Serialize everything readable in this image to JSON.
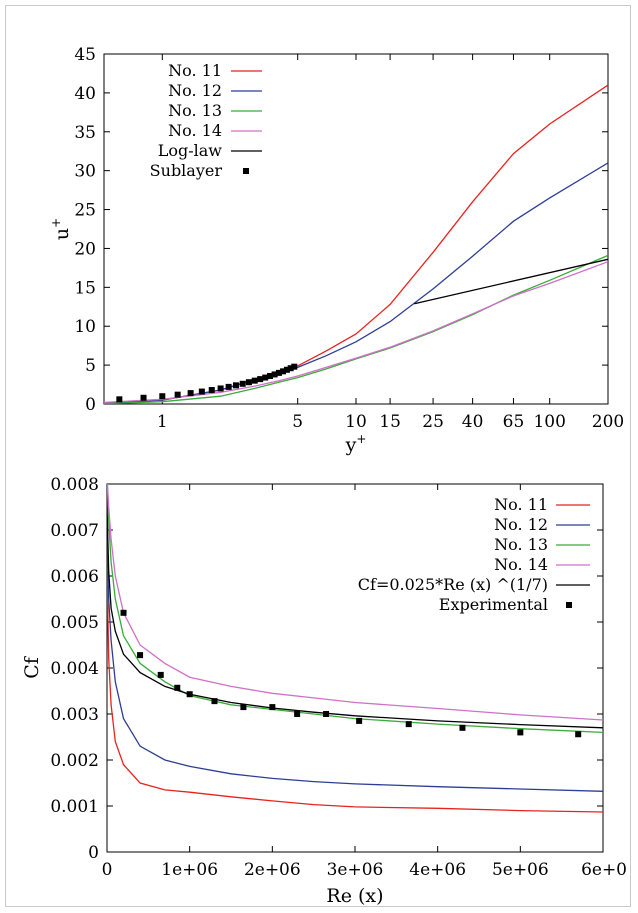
{
  "chart_data": [
    {
      "type": "line",
      "title": "",
      "xlabel": "y",
      "xlabel_sup": "+",
      "ylabel": "u",
      "ylabel_sup": "+",
      "xscale": "log",
      "xlim": [
        0.5,
        200
      ],
      "ylim": [
        0,
        45
      ],
      "x_ticks": [
        1,
        5,
        10,
        15,
        25,
        40,
        65,
        100,
        200
      ],
      "y_ticks": [
        0,
        5,
        10,
        15,
        20,
        25,
        30,
        35,
        40,
        45
      ],
      "legend": "top-left",
      "grid": false,
      "series": [
        {
          "name": "No. 11",
          "color": "#e8231e",
          "x": [
            0.5,
            1,
            2,
            3,
            4,
            5,
            7,
            10,
            15,
            25,
            40,
            65,
            100,
            200
          ],
          "y": [
            0.1,
            0.5,
            1.8,
            3.2,
            4.1,
            4.9,
            6.8,
            9.0,
            12.8,
            19.5,
            26.0,
            32.2,
            36.0,
            41.0
          ]
        },
        {
          "name": "No. 12",
          "color": "#2c3e94",
          "x": [
            0.5,
            1,
            2,
            3,
            4,
            5,
            7,
            10,
            15,
            25,
            40,
            65,
            100,
            200
          ],
          "y": [
            0.1,
            0.5,
            1.8,
            3.1,
            3.9,
            4.7,
            6.2,
            8.0,
            10.6,
            14.8,
            19.0,
            23.5,
            26.5,
            31.0
          ]
        },
        {
          "name": "No. 13",
          "color": "#3aab3a",
          "x": [
            0.5,
            1,
            2,
            3,
            4,
            5,
            7,
            10,
            15,
            25,
            40,
            65,
            100,
            200
          ],
          "y": [
            0.05,
            0.3,
            1.0,
            2.0,
            2.8,
            3.4,
            4.5,
            5.8,
            7.2,
            9.3,
            11.5,
            14.0,
            15.9,
            19.1
          ]
        },
        {
          "name": "No. 14",
          "color": "#d070c8",
          "x": [
            0.5,
            1,
            2,
            3,
            4,
            5,
            7,
            10,
            15,
            25,
            40,
            65,
            100,
            200
          ],
          "y": [
            0.2,
            0.6,
            1.5,
            2.3,
            3.0,
            3.6,
            4.7,
            5.9,
            7.3,
            9.4,
            11.6,
            13.9,
            15.5,
            18.3
          ]
        },
        {
          "name": "Log-law",
          "color": "#000000",
          "x": [
            20,
            200
          ],
          "y": [
            12.9,
            18.6
          ]
        },
        {
          "name": "Sublayer",
          "color": "#000000",
          "marker": "square",
          "x": [
            0.6,
            0.8,
            1.0,
            1.2,
            1.4,
            1.6,
            1.8,
            2.0,
            2.2,
            2.4,
            2.6,
            2.8,
            3.0,
            3.2,
            3.4,
            3.6,
            3.8,
            4.0,
            4.2,
            4.4,
            4.6,
            4.8
          ],
          "y": [
            0.6,
            0.8,
            1.0,
            1.2,
            1.4,
            1.6,
            1.8,
            2.0,
            2.2,
            2.4,
            2.6,
            2.8,
            3.0,
            3.2,
            3.4,
            3.6,
            3.8,
            4.0,
            4.2,
            4.4,
            4.6,
            4.8
          ]
        }
      ]
    },
    {
      "type": "line",
      "title": "",
      "xlabel": "Re (x)",
      "ylabel": "Cf",
      "xlim": [
        0,
        6000000
      ],
      "ylim": [
        0,
        0.008
      ],
      "x_tick_labels": [
        "0",
        "1e+06",
        "2e+06",
        "3e+06",
        "4e+06",
        "5e+06",
        "6e+0"
      ],
      "y_tick_labels": [
        "0",
        "0.001",
        "0.002",
        "0.003",
        "0.004",
        "0.005",
        "0.006",
        "0.007",
        "0.008"
      ],
      "legend": "top-right",
      "grid": false,
      "series": [
        {
          "name": "No. 11",
          "color": "#e8231e",
          "x": [
            0,
            20000,
            50000,
            100000,
            200000,
            400000,
            700000,
            1000000,
            1500000,
            2000000,
            2500000,
            3000000,
            4000000,
            5000000,
            6000000
          ],
          "y": [
            0.0062,
            0.0042,
            0.0032,
            0.0024,
            0.0019,
            0.0015,
            0.00135,
            0.0013,
            0.0012,
            0.00111,
            0.00103,
            0.00098,
            0.00095,
            0.0009,
            0.00087
          ]
        },
        {
          "name": "No. 12",
          "color": "#2c3e94",
          "x": [
            0,
            20000,
            50000,
            100000,
            200000,
            400000,
            700000,
            1000000,
            1500000,
            2000000,
            2500000,
            3000000,
            4000000,
            5000000,
            6000000
          ],
          "y": [
            0.0068,
            0.0055,
            0.0046,
            0.0037,
            0.0029,
            0.0023,
            0.002,
            0.00186,
            0.0017,
            0.0016,
            0.00153,
            0.00148,
            0.00142,
            0.00137,
            0.00132
          ]
        },
        {
          "name": "No. 13",
          "color": "#3aab3a",
          "x": [
            0,
            20000,
            50000,
            100000,
            200000,
            400000,
            700000,
            1000000,
            1500000,
            2000000,
            2500000,
            3000000,
            4000000,
            5000000,
            6000000
          ],
          "y": [
            0.0082,
            0.0072,
            0.0063,
            0.0055,
            0.0047,
            0.0041,
            0.0037,
            0.0034,
            0.0032,
            0.0031,
            0.003,
            0.0029,
            0.00278,
            0.00268,
            0.0026
          ]
        },
        {
          "name": "No. 14",
          "color": "#d070c8",
          "x": [
            0,
            20000,
            50000,
            100000,
            200000,
            400000,
            700000,
            1000000,
            1500000,
            2000000,
            2500000,
            3000000,
            4000000,
            5000000,
            6000000
          ],
          "y": [
            0.0082,
            0.0075,
            0.0068,
            0.006,
            0.0052,
            0.0045,
            0.0041,
            0.0038,
            0.0036,
            0.00345,
            0.00335,
            0.00325,
            0.00312,
            0.00298,
            0.00287
          ]
        },
        {
          "name": "Cf=0.025*Re (x) ^(1/7)",
          "color": "#000000",
          "x": [
            0,
            20000,
            50000,
            100000,
            200000,
            400000,
            700000,
            1000000,
            1500000,
            2000000,
            2500000,
            3000000,
            4000000,
            5000000,
            6000000
          ],
          "y": [
            0.0075,
            0.0061,
            0.0053,
            0.0048,
            0.0043,
            0.0039,
            0.0036,
            0.00343,
            0.00325,
            0.00313,
            0.00304,
            0.00296,
            0.00285,
            0.00277,
            0.0027
          ]
        },
        {
          "name": "Experimental",
          "color": "#000000",
          "marker": "square",
          "x": [
            200000,
            400000,
            650000,
            850000,
            1000000,
            1300000,
            1650000,
            2000000,
            2300000,
            2650000,
            3050000,
            3650000,
            4300000,
            5000000,
            5700000
          ],
          "y": [
            0.0052,
            0.00428,
            0.00385,
            0.00357,
            0.00343,
            0.00328,
            0.00315,
            0.00315,
            0.003,
            0.003,
            0.00285,
            0.00278,
            0.0027,
            0.0026,
            0.00256
          ]
        }
      ]
    }
  ]
}
